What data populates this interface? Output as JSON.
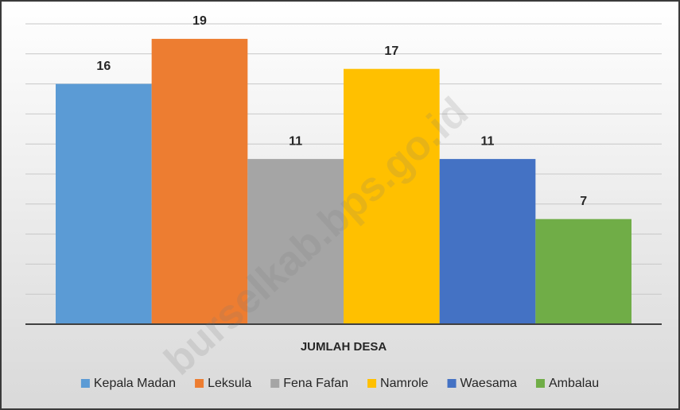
{
  "chart_data": {
    "type": "bar",
    "categories": [
      "JUMLAH DESA"
    ],
    "series": [
      {
        "name": "Kepala Madan",
        "color": "#5b9bd5",
        "values": [
          16
        ]
      },
      {
        "name": "Leksula",
        "color": "#ed7d31",
        "values": [
          19
        ]
      },
      {
        "name": "Fena Fafan",
        "color": "#a5a5a5",
        "values": [
          11
        ]
      },
      {
        "name": "Namrole",
        "color": "#ffc000",
        "values": [
          17
        ]
      },
      {
        "name": "Waesama",
        "color": "#4472c4",
        "values": [
          11
        ]
      },
      {
        "name": "Ambalau",
        "color": "#70ad47",
        "values": [
          7
        ]
      }
    ],
    "ylim": [
      0,
      20
    ],
    "yticks": [
      0,
      2,
      4,
      6,
      8,
      10,
      12,
      14,
      16,
      18,
      20
    ],
    "grid": true,
    "legend": "bottom",
    "watermark": "burselkab.bps.go.id"
  }
}
